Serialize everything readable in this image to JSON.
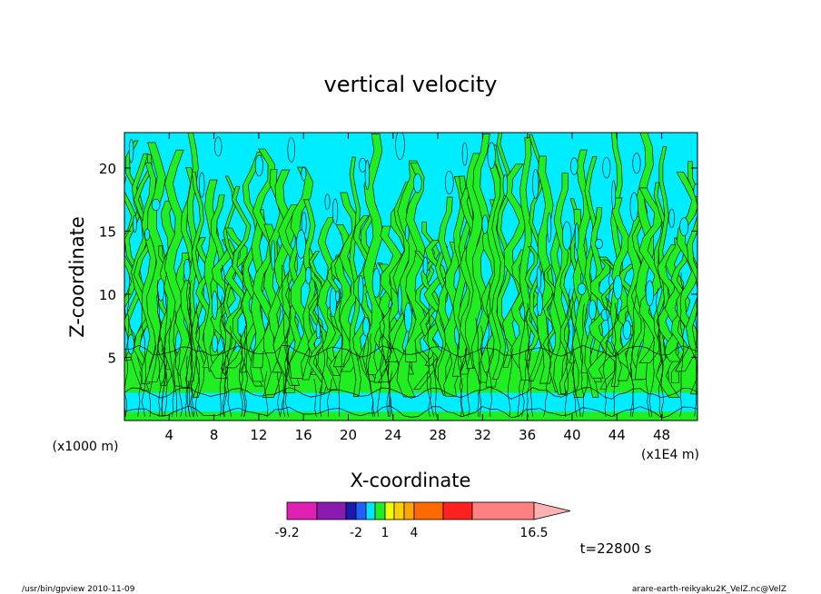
{
  "chart_data": {
    "type": "heatmap",
    "title": "vertical velocity",
    "xlabel": "X-coordinate",
    "ylabel": "Z-coordinate",
    "x_unit_left": "(x1000 m)",
    "x_unit_right": "(x1E4 m)",
    "xlim": [
      0,
      51.2
    ],
    "ylim": [
      0,
      22.8
    ],
    "xticks": [
      4,
      8,
      12,
      16,
      20,
      24,
      28,
      32,
      36,
      40,
      44,
      48
    ],
    "yticks": [
      5,
      10,
      15,
      20
    ],
    "time_label": "t=22800 s",
    "colorbar": {
      "tick_labels": [
        {
          "label": "-9.2",
          "value": -9.2
        },
        {
          "label": "-2",
          "value": -2
        },
        {
          "label": "1",
          "value": 1
        },
        {
          "label": "4",
          "value": 4
        },
        {
          "label": "16.5",
          "value": 16.5
        }
      ],
      "levels": [
        -9.2,
        -7.0,
        -4.8,
        -2.6,
        -2.0,
        -1.0,
        0.0,
        1.0,
        2.0,
        3.0,
        4.0,
        6.0,
        8.0,
        16.5
      ],
      "colors": [
        "#e020b0",
        "#8a1ab0",
        "#1a1ab0",
        "#1f5fff",
        "#00e5ff",
        "#20ee20",
        "#f0ff00",
        "#ffd000",
        "#ffa500",
        "#ff6a00",
        "#ff2020",
        "#ff8080"
      ],
      "overflow_color": "#ffb0b0"
    },
    "field_colors": {
      "negative": "#00ecff",
      "positive": "#20ee20",
      "contour": "#000000"
    }
  },
  "footer": {
    "left": "/usr/bin/gpview   2010-11-09",
    "right": "arare-earth-reikyaku2K_VelZ.nc@VelZ"
  }
}
